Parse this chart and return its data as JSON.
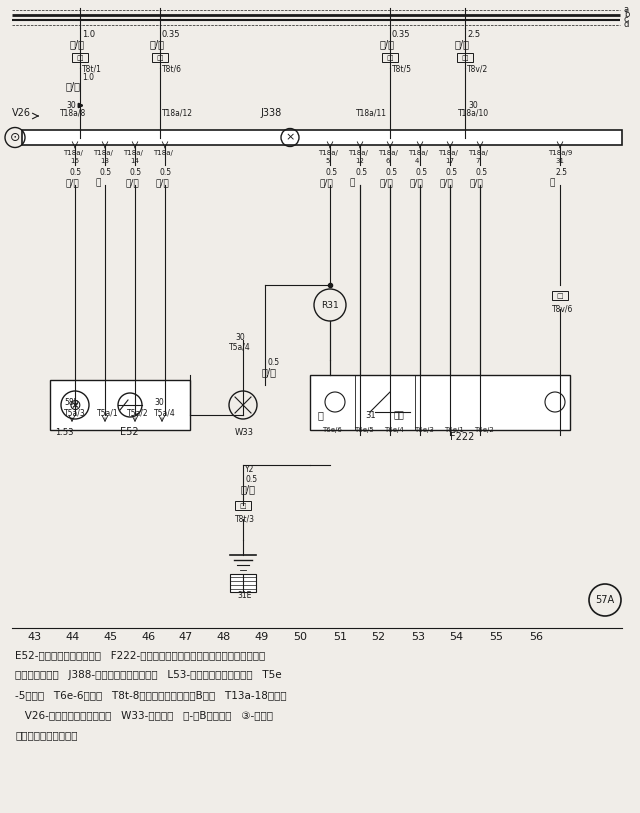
{
  "bg_color": "#f0ede8",
  "fig_width": 6.4,
  "fig_height": 8.13,
  "bottom_numbers": [
    "43",
    "44",
    "45",
    "46",
    "47",
    "48",
    "49",
    "50",
    "51",
    "52",
    "53",
    "54",
    "55",
    "56"
  ],
  "corner_label": "57A",
  "description_lines": [
    "E52-后排左侧电动门窗开关   F222-后排左侧中央门锁电控单元（图中开关处于车",
    "门打开的位置）   J388-后排左侧车门电控单元   L53-电动门窗开关指示灯泡   T5e",
    "-5孔插头   T6e-6孔插头   T8t-8孔插头（黑色，在左B处）   T13a-18孔插头",
    "   V26-后排左侧电动门窗电机   W33-左后门灯   Ⓑ-左B柱搞铁点   ③-连接线",
    "（在左后车门线束内）"
  ]
}
